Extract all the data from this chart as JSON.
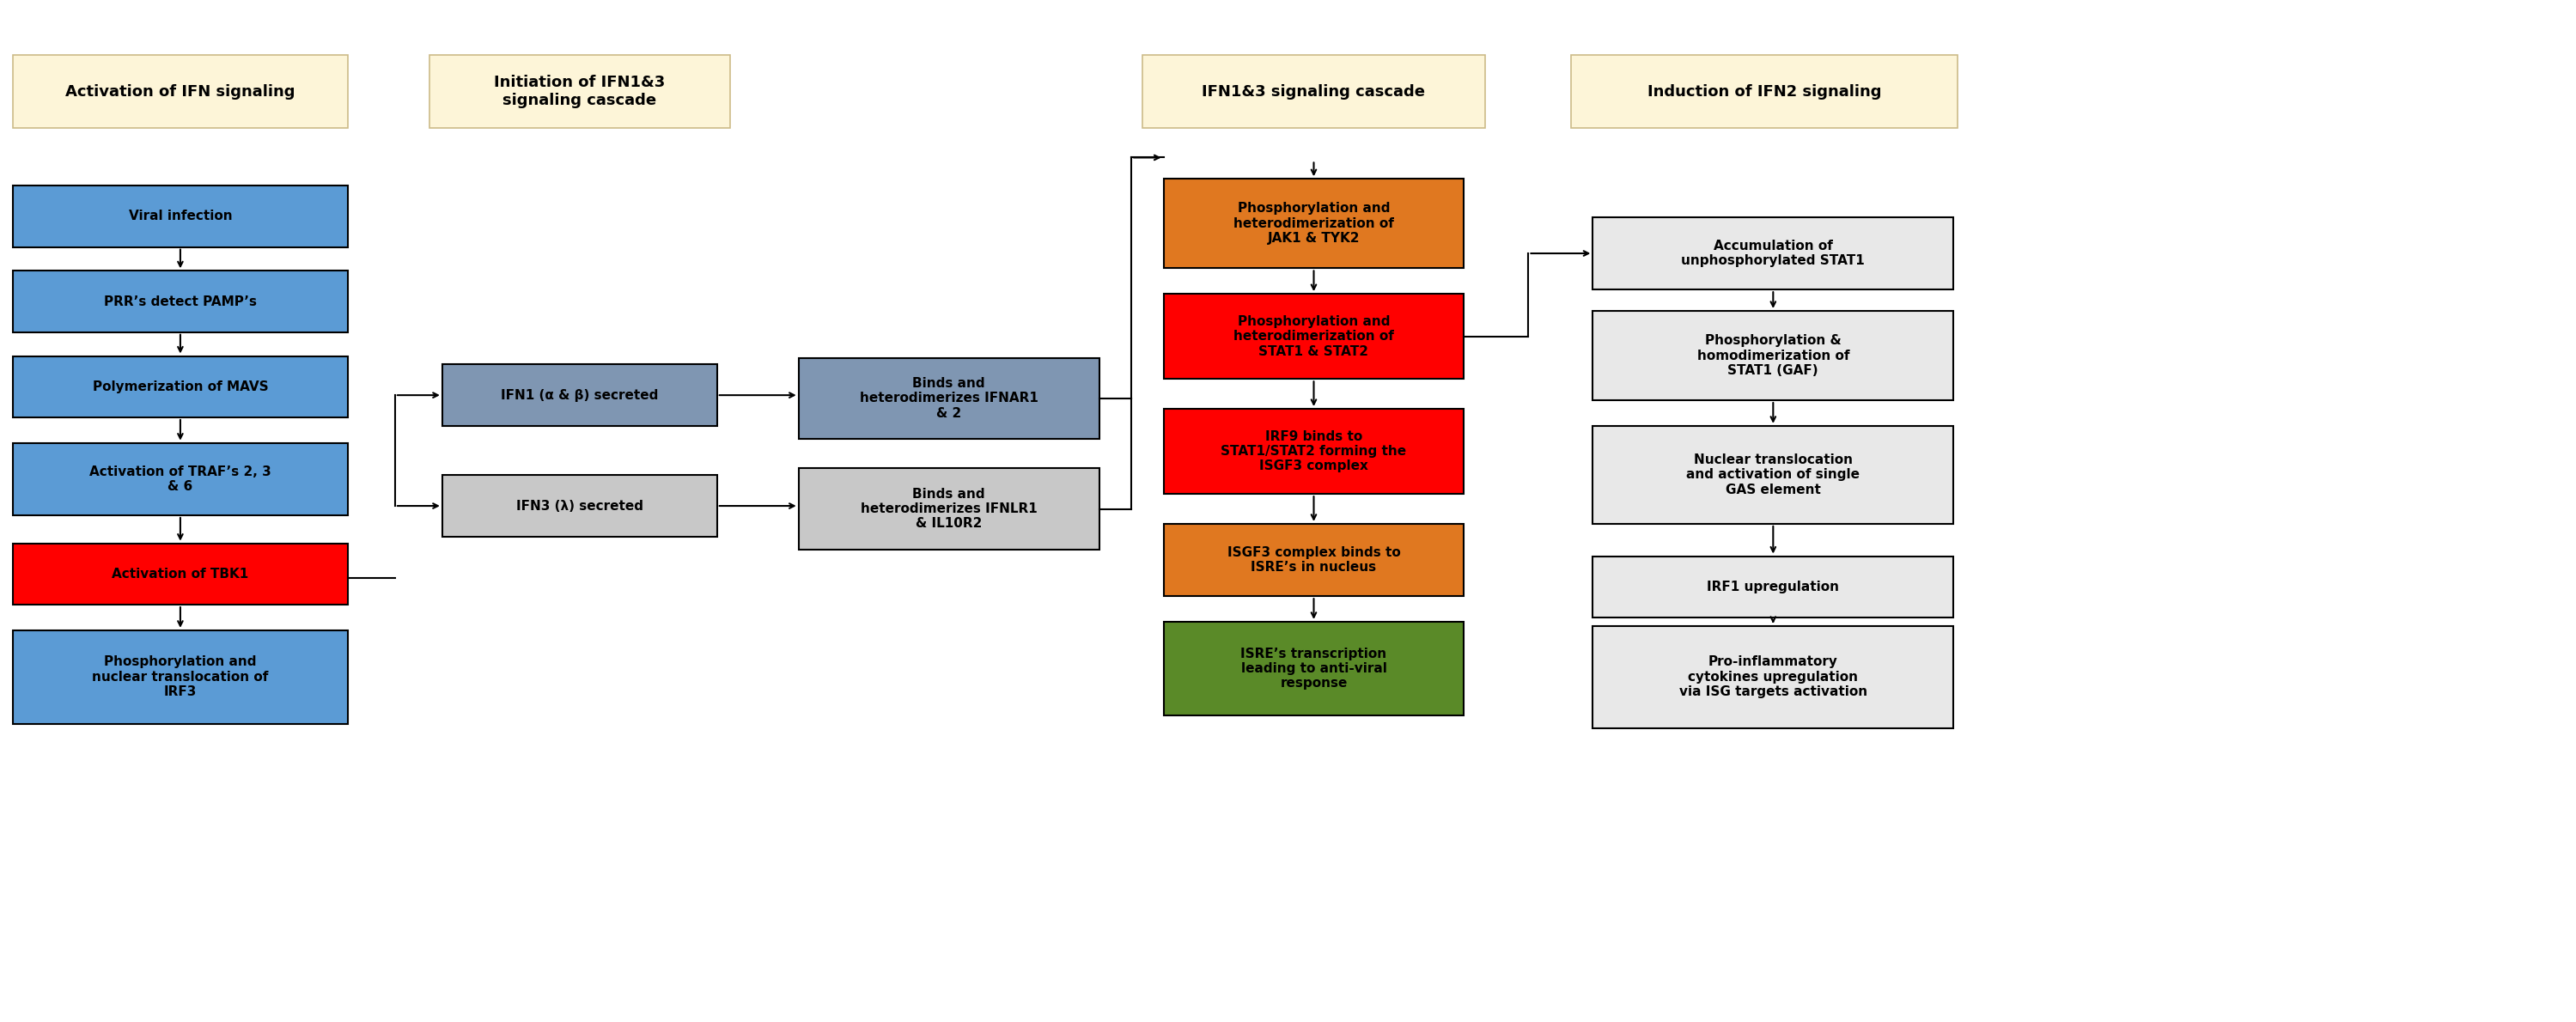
{
  "bg_color": "#ffffff",
  "header_bg": "#fdf5d8",
  "header_border": "#ccbb88",
  "section1_title": "Activation of IFN signaling",
  "section2_title": "Initiation of IFN1&3\nsignaling cascade",
  "section3_title": "IFN1&3 signaling cascade",
  "section4_title": "Induction of IFN2 signaling",
  "col1_boxes": [
    {
      "text": "Viral infection",
      "color": "#5b9bd5",
      "text_color": "#000000"
    },
    {
      "text": "PRR’s detect PAMP’s",
      "color": "#5b9bd5",
      "text_color": "#000000"
    },
    {
      "text": "Polymerization of MAVS",
      "color": "#5b9bd5",
      "text_color": "#000000"
    },
    {
      "text": "Activation of TRAF’s 2, 3\n& 6",
      "color": "#5b9bd5",
      "text_color": "#000000"
    },
    {
      "text": "Activation of TBK1",
      "color": "#ff0000",
      "text_color": "#000000"
    },
    {
      "text": "Phosphorylation and\nnuclear translocation of\nIRF3",
      "color": "#5b9bd5",
      "text_color": "#000000"
    }
  ],
  "col2_boxes": [
    {
      "text": "IFN1 (α & β) secreted",
      "color": "#7f96b2",
      "text_color": "#000000"
    },
    {
      "text": "IFN3 (λ) secreted",
      "color": "#c8c8c8",
      "text_color": "#000000"
    }
  ],
  "col3_boxes": [
    {
      "text": "Binds and\nheterodimerizes IFNAR1\n& 2",
      "color": "#7f96b2",
      "text_color": "#000000"
    },
    {
      "text": "Binds and\nheterodimerizes IFNLR1\n& IL10R2",
      "color": "#c8c8c8",
      "text_color": "#000000"
    }
  ],
  "col4_boxes": [
    {
      "text": "Phosphorylation and\nheterodimerization of\nJAK1 & TYK2",
      "color": "#e07820",
      "text_color": "#000000"
    },
    {
      "text": "Phosphorylation and\nheterodimerization of\nSTAT1 & STAT2",
      "color": "#ff0000",
      "text_color": "#000000"
    },
    {
      "text": "IRF9 binds to\nSTAT1/STAT2 forming the\nISGF3 complex",
      "color": "#ff0000",
      "text_color": "#000000"
    },
    {
      "text": "ISGF3 complex binds to\nISRE’s in nucleus",
      "color": "#e07820",
      "text_color": "#000000"
    },
    {
      "text": "ISRE’s transcription\nleading to anti-viral\nresponse",
      "color": "#5a8a28",
      "text_color": "#000000"
    }
  ],
  "col5_boxes": [
    {
      "text": "Accumulation of\nunphosphorylated STAT1",
      "color": "#e8e8e8",
      "text_color": "#000000"
    },
    {
      "text": "Phosphorylation &\nhomodimerization of\nSTAT1 (GAF)",
      "color": "#e8e8e8",
      "text_color": "#000000"
    },
    {
      "text": "Nuclear translocation\nand activation of single\nGAS element",
      "color": "#e8e8e8",
      "text_color": "#000000"
    },
    {
      "text": "IRF1 upregulation",
      "color": "#e8e8e8",
      "text_color": "#000000"
    },
    {
      "text": "Pro-inflammatory\ncytokines upregulation\nvia ISG targets activation",
      "color": "#e8e8e8",
      "text_color": "#000000"
    }
  ]
}
